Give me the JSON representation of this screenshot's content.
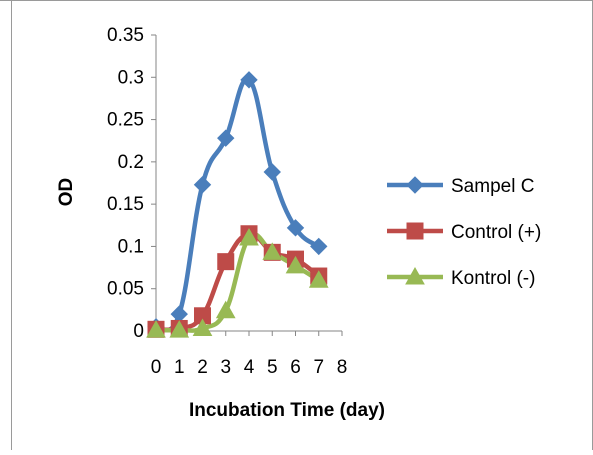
{
  "chart_data": {
    "type": "line",
    "title": "",
    "xlabel": "Incubation Time (day)",
    "ylabel": "OD",
    "xlim": [
      0,
      8
    ],
    "ylim": [
      0,
      0.35
    ],
    "x_ticks": [
      "0",
      "1",
      "2",
      "3",
      "4",
      "5",
      "6",
      "7",
      "8"
    ],
    "y_ticks": [
      "0",
      "0.05",
      "0.1",
      "0.15",
      "0.2",
      "0.25",
      "0.3",
      "0.35"
    ],
    "grid": false,
    "smooth": true,
    "legend_position": "right",
    "series": [
      {
        "name": "Sampel C",
        "color": "#4a7ebb",
        "marker": "diamond",
        "x": [
          0,
          1,
          2,
          3,
          4,
          5,
          6,
          7
        ],
        "values": [
          0.005,
          0.02,
          0.173,
          0.228,
          0.297,
          0.188,
          0.122,
          0.1
        ]
      },
      {
        "name": "Control (+)",
        "color": "#be4b48",
        "marker": "square",
        "x": [
          0,
          1,
          2,
          3,
          4,
          5,
          6,
          7
        ],
        "values": [
          0.002,
          0.003,
          0.018,
          0.082,
          0.115,
          0.093,
          0.085,
          0.065
        ]
      },
      {
        "name": "Kontrol (-)",
        "color": "#98b954",
        "marker": "triangle",
        "x": [
          0,
          1,
          2,
          3,
          4,
          5,
          6,
          7
        ],
        "values": [
          0.001,
          0.001,
          0.003,
          0.024,
          0.11,
          0.093,
          0.077,
          0.06
        ]
      }
    ]
  }
}
